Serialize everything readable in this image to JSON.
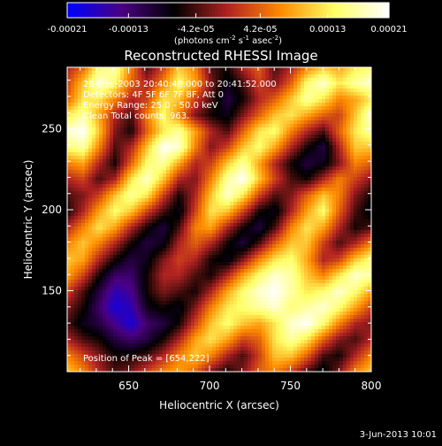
{
  "chart_data": {
    "type": "heatmap",
    "title": "Reconstructed RHESSI Image",
    "xlabel": "Heliocentric X (arcsec)",
    "ylabel": "Heliocentric Y (arcsec)",
    "xlim": [
      612,
      800
    ],
    "ylim": [
      100,
      288
    ],
    "x_ticks": [
      650,
      700,
      750,
      800
    ],
    "y_ticks": [
      150,
      200,
      250
    ],
    "colorbar": {
      "min": -0.00021,
      "max": 0.00021,
      "tick_labels": [
        "-0.00021",
        "-0.00013",
        "-4.2e-05",
        "4.2e-05",
        "0.00013",
        "0.00021"
      ],
      "label_prefix": "(photons cm",
      "exp1": "-2",
      "label_mid": " s",
      "exp2": "-1",
      "label_mid2": " asec",
      "exp3": "-2",
      "label_suffix": ")"
    },
    "annotations": [
      "25-Dec-2003 20:40:48.000 to 20:41:52.000",
      "Detectors: 4F 5F 6F 7F 8F, Att 0",
      "Energy Range: 25.0 - 50.0 keV",
      "Clean     Total counts: 963."
    ],
    "peak_label": "Position of Peak = [654,222]",
    "peak_marker": {
      "x": 674,
      "y": 140
    },
    "colormap_stops": [
      "#0000ff",
      "#4b0082",
      "#000000",
      "#b22222",
      "#ff8c00",
      "#ffff66",
      "#ffffff"
    ],
    "intensity_grid": {
      "rows_top_to_bottom": [
        [
          0.0,
          0.2,
          0.7,
          0.8,
          0.3,
          -0.2,
          0.1,
          0.5,
          0.3,
          -0.2,
          -0.3,
          0.0,
          0.2,
          -0.2,
          0.0,
          0.3,
          0.5,
          0.4,
          0.6,
          0.7
        ],
        [
          0.1,
          0.5,
          0.9,
          0.7,
          0.2,
          0.0,
          0.3,
          0.7,
          0.4,
          -0.1,
          -0.4,
          -0.2,
          0.1,
          -0.1,
          0.2,
          0.7,
          0.9,
          0.6,
          0.8,
          0.9
        ],
        [
          0.2,
          0.6,
          0.6,
          0.3,
          0.0,
          0.1,
          0.6,
          0.5,
          0.1,
          -0.2,
          -0.5,
          -0.3,
          0.0,
          0.2,
          0.5,
          0.8,
          0.6,
          0.3,
          0.4,
          0.6
        ],
        [
          0.6,
          0.8,
          0.4,
          0.0,
          -0.2,
          0.3,
          0.7,
          0.3,
          -0.1,
          -0.3,
          -0.4,
          -0.1,
          0.2,
          0.5,
          0.6,
          0.4,
          0.2,
          0.1,
          0.5,
          0.9
        ],
        [
          0.9,
          1.0,
          0.5,
          -0.1,
          -0.3,
          0.2,
          0.6,
          0.8,
          0.4,
          0.0,
          -0.2,
          0.2,
          0.6,
          0.7,
          0.3,
          0.0,
          -0.2,
          0.2,
          0.6,
          0.8
        ],
        [
          0.7,
          0.8,
          0.3,
          -0.2,
          0.0,
          0.5,
          1.0,
          0.9,
          0.3,
          -0.1,
          0.1,
          0.5,
          0.7,
          0.4,
          0.0,
          -0.3,
          -0.5,
          0.0,
          0.5,
          0.5
        ],
        [
          0.3,
          0.4,
          0.0,
          -0.3,
          0.2,
          0.7,
          0.8,
          0.4,
          0.0,
          0.1,
          0.5,
          0.8,
          0.4,
          0.0,
          -0.3,
          -0.5,
          -0.4,
          -0.1,
          0.3,
          0.2
        ],
        [
          0.0,
          0.1,
          -0.2,
          0.0,
          0.6,
          0.9,
          0.5,
          0.0,
          -0.1,
          0.3,
          0.8,
          1.0,
          0.5,
          0.1,
          -0.2,
          -0.3,
          0.0,
          0.3,
          0.1,
          -0.1
        ],
        [
          -0.2,
          -0.1,
          0.1,
          0.5,
          0.8,
          0.6,
          0.1,
          -0.3,
          0.0,
          0.5,
          0.9,
          0.6,
          0.1,
          -0.2,
          -0.1,
          0.2,
          0.5,
          0.3,
          -0.1,
          -0.3
        ],
        [
          -0.3,
          0.0,
          0.4,
          0.7,
          0.5,
          0.1,
          -0.2,
          -0.4,
          0.1,
          0.6,
          0.5,
          0.1,
          -0.3,
          -0.4,
          0.0,
          0.4,
          0.7,
          0.2,
          -0.2,
          -0.4
        ],
        [
          0.0,
          0.3,
          0.6,
          0.4,
          0.0,
          -0.3,
          -0.5,
          -0.2,
          0.3,
          0.4,
          0.0,
          -0.3,
          -0.5,
          -0.2,
          0.3,
          0.6,
          0.4,
          0.0,
          -0.3,
          -0.2
        ],
        [
          0.3,
          0.5,
          0.3,
          0.0,
          -0.3,
          -0.5,
          -0.4,
          0.0,
          0.2,
          0.0,
          -0.3,
          -0.5,
          -0.2,
          0.2,
          0.5,
          0.5,
          0.1,
          -0.2,
          0.0,
          0.3
        ],
        [
          0.5,
          0.4,
          0.0,
          -0.3,
          -0.5,
          -0.4,
          -0.1,
          0.1,
          0.0,
          -0.3,
          -0.4,
          -0.1,
          0.3,
          0.6,
          0.7,
          0.4,
          0.0,
          0.1,
          0.5,
          0.7
        ],
        [
          0.4,
          0.1,
          -0.3,
          -0.6,
          -0.6,
          -0.3,
          0.0,
          0.0,
          -0.2,
          -0.3,
          0.0,
          0.4,
          0.7,
          0.9,
          0.8,
          0.5,
          0.3,
          0.6,
          0.9,
          0.8
        ],
        [
          0.1,
          -0.2,
          -0.5,
          -0.8,
          -0.7,
          -0.3,
          -0.1,
          -0.2,
          -0.3,
          0.0,
          0.4,
          0.7,
          0.9,
          1.0,
          0.8,
          0.6,
          0.7,
          0.9,
          0.7,
          0.4
        ],
        [
          -0.1,
          -0.3,
          -0.6,
          -0.9,
          -0.8,
          -0.4,
          -0.3,
          -0.4,
          -0.1,
          0.3,
          0.6,
          0.7,
          0.8,
          0.9,
          0.7,
          0.8,
          0.9,
          0.7,
          0.4,
          0.1
        ],
        [
          -0.2,
          -0.4,
          -0.5,
          -0.7,
          -0.9,
          -0.6,
          -0.5,
          -0.3,
          0.1,
          0.5,
          0.7,
          0.5,
          0.4,
          0.6,
          0.9,
          1.0,
          0.7,
          0.3,
          0.0,
          -0.1
        ],
        [
          0.0,
          -0.2,
          -0.3,
          -0.5,
          -0.6,
          -0.5,
          -0.3,
          0.0,
          0.4,
          0.6,
          0.4,
          0.1,
          0.2,
          0.6,
          0.8,
          0.6,
          0.2,
          -0.1,
          -0.2,
          0.0
        ],
        [
          0.3,
          0.1,
          -0.1,
          -0.3,
          -0.3,
          -0.2,
          0.0,
          0.3,
          0.5,
          0.3,
          0.0,
          -0.2,
          0.1,
          0.5,
          0.5,
          0.2,
          -0.2,
          -0.3,
          0.0,
          0.3
        ],
        [
          0.5,
          0.3,
          0.0,
          -0.2,
          -0.1,
          0.1,
          0.3,
          0.4,
          0.2,
          -0.1,
          -0.3,
          -0.1,
          0.2,
          0.3,
          0.1,
          -0.2,
          -0.4,
          -0.1,
          0.3,
          0.5
        ]
      ]
    }
  },
  "footer": {
    "date_stamp": "3-Jun-2013 10:01"
  }
}
